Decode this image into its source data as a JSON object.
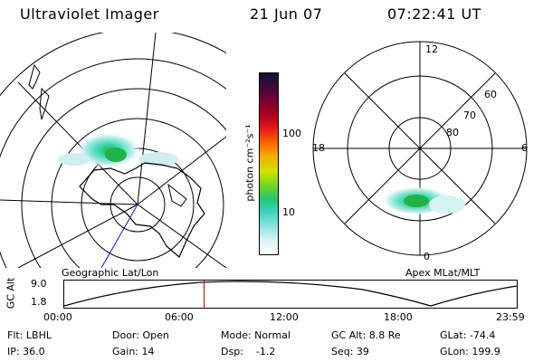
{
  "header": {
    "title": "Ultraviolet Imager",
    "date": "21 Jun 07",
    "time": "07:22:41 UT"
  },
  "left_panel": {
    "caption": "Geographic Lat/Lon"
  },
  "right_panel": {
    "caption": "Apex MLat/MLT",
    "hour_labels": [
      "12",
      "18",
      "6",
      "0"
    ],
    "lat_labels": [
      "60",
      "70",
      "80"
    ]
  },
  "colorbar": {
    "unit_label": "photon cm⁻²s⁻¹",
    "tick_labels": [
      "100",
      "10"
    ],
    "colors": [
      "#ffffff",
      "#d9f4f4",
      "#8fe3e0",
      "#3fd3c0",
      "#22c86f",
      "#7ad61e",
      "#d4e200",
      "#f2b000",
      "#ff6400",
      "#e61a1a",
      "#b0001e",
      "#7a0030",
      "#3c0a3c",
      "#111133"
    ]
  },
  "timeline": {
    "axis_label": "GC Alt",
    "y_ticks": [
      "9.0",
      "1.8"
    ],
    "x_ticks": [
      "00:00",
      "06:00",
      "12:00",
      "18:00",
      "23:59"
    ],
    "current_time_fraction": 0.307,
    "marker_color": "#cc0000"
  },
  "info": {
    "filter": "Flt: LBHL",
    "ip": "IP: 36.0",
    "door": "Door: Open",
    "gain": "Gain: 14",
    "mode": "Mode: Normal",
    "dsp": "Dsp:    -1.2",
    "gc_alt": "GC Alt: 8.8 Re",
    "seq": "Seq: 39",
    "glat": "GLat: -74.4",
    "glon": "GLon: 199.9"
  }
}
